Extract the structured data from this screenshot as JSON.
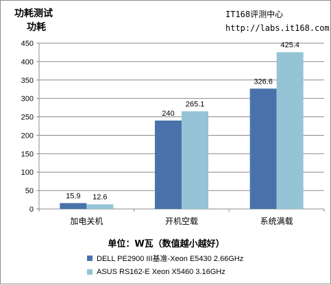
{
  "header": {
    "title": "功耗测试",
    "subtitle": "功耗",
    "brand_name": "IT168评测中心",
    "brand_url": "http://labs.it168.com"
  },
  "chart_data": {
    "type": "bar",
    "categories": [
      "加电关机",
      "开机空载",
      "系统满载"
    ],
    "series": [
      {
        "name": "DELL PE2900 III基准-Xeon  E5430 2.66GHz",
        "values": [
          15.9,
          240,
          326.6
        ],
        "color": "#4a72aa"
      },
      {
        "name": "ASUS RS162-E Xeon X5460 3.16GHz",
        "values": [
          12.6,
          265.1,
          425.4
        ],
        "color": "#94c4d6"
      }
    ],
    "ylim": [
      0,
      450
    ],
    "yticks": [
      0,
      50,
      100,
      150,
      200,
      250,
      300,
      350,
      400,
      450
    ],
    "xlabel": "单位：W瓦（数值越小越好）",
    "grid": true,
    "legend_position": "bottom"
  }
}
